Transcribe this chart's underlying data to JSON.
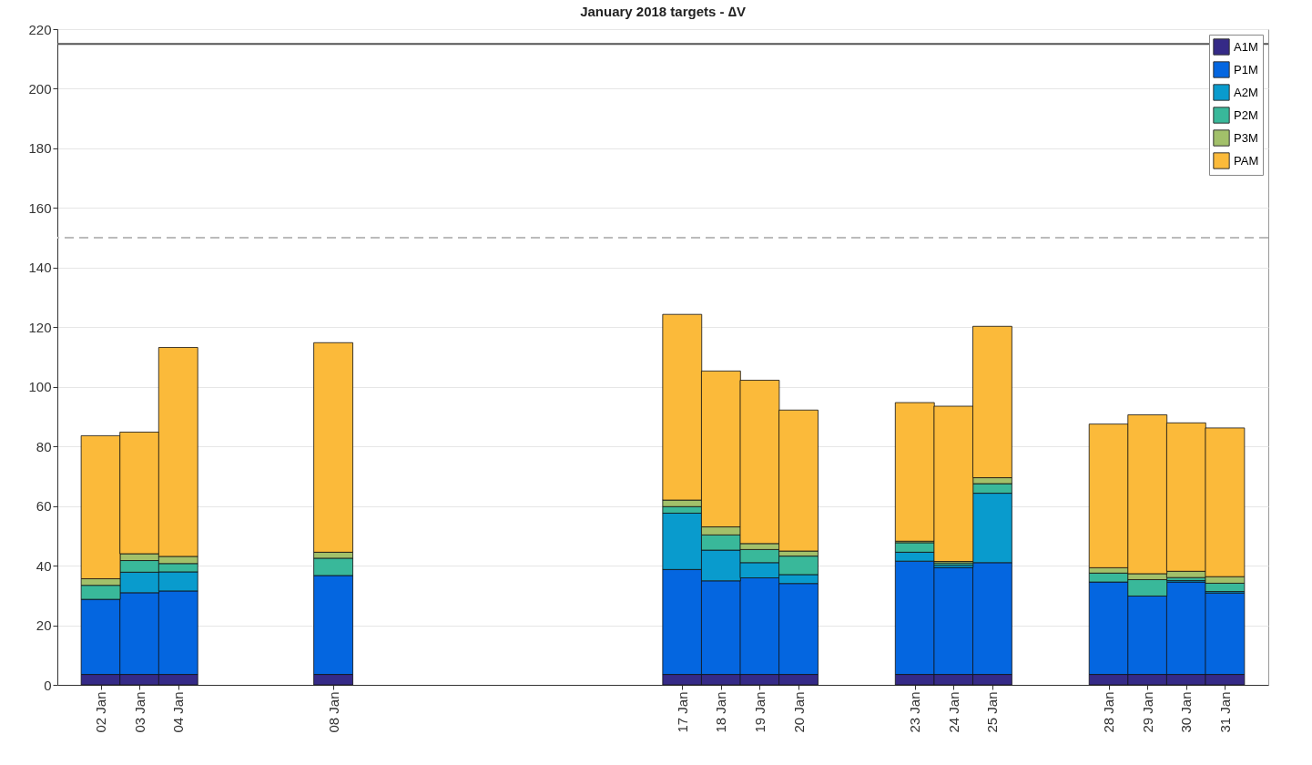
{
  "chart_data": {
    "type": "bar",
    "title": "January 2018 targets - ∆V",
    "stacked": true,
    "x": [
      "2018-01-02",
      "2018-01-03",
      "2018-01-04",
      "2018-01-08",
      "2018-01-17",
      "2018-01-18",
      "2018-01-19",
      "2018-01-20",
      "2018-01-23",
      "2018-01-24",
      "2018-01-25",
      "2018-01-28",
      "2018-01-29",
      "2018-01-30",
      "2018-01-31"
    ],
    "xlim": [
      "2018-01-01",
      "2018-02-01"
    ],
    "xticks": [
      {
        "value": "2018-01-02",
        "label": "02 Jan"
      },
      {
        "value": "2018-01-03",
        "label": "03 Jan"
      },
      {
        "value": "2018-01-04",
        "label": "04 Jan"
      },
      {
        "value": "2018-01-08",
        "label": "08 Jan"
      },
      {
        "value": "2018-01-17",
        "label": "17 Jan"
      },
      {
        "value": "2018-01-18",
        "label": "18 Jan"
      },
      {
        "value": "2018-01-19",
        "label": "19 Jan"
      },
      {
        "value": "2018-01-20",
        "label": "20 Jan"
      },
      {
        "value": "2018-01-23",
        "label": "23 Jan"
      },
      {
        "value": "2018-01-24",
        "label": "24 Jan"
      },
      {
        "value": "2018-01-25",
        "label": "25 Jan"
      },
      {
        "value": "2018-01-28",
        "label": "28 Jan"
      },
      {
        "value": "2018-01-29",
        "label": "29 Jan"
      },
      {
        "value": "2018-01-30",
        "label": "30 Jan"
      },
      {
        "value": "2018-01-31",
        "label": "31 Jan"
      }
    ],
    "ylim": [
      0,
      220
    ],
    "yticks": [
      0,
      20,
      40,
      60,
      80,
      100,
      120,
      140,
      160,
      180,
      200,
      220
    ],
    "grid": "y",
    "legend": "top right",
    "series": [
      {
        "name": "A1M",
        "color": "#352a87",
        "values": [
          3.5,
          3.5,
          3.5,
          3.5,
          3.5,
          3.5,
          3.5,
          3.5,
          3.5,
          3.5,
          3.5,
          3.5,
          3.5,
          3.5,
          3.5
        ]
      },
      {
        "name": "P1M",
        "color": "#0466e0",
        "values": [
          25.2,
          27.4,
          28.0,
          33.2,
          35.2,
          31.4,
          32.4,
          30.5,
          38.0,
          35.9,
          37.5,
          31.0,
          26.3,
          31.0,
          27.3
        ]
      },
      {
        "name": "A2M",
        "color": "#099bcd",
        "values": [
          null,
          6.9,
          6.4,
          null,
          18.9,
          10.3,
          5.1,
          3.0,
          3.0,
          0.8,
          23.3,
          null,
          null,
          0.5,
          0.5
        ]
      },
      {
        "name": "P2M",
        "color": "#39b89a",
        "values": [
          4.7,
          3.9,
          2.8,
          5.8,
          2.2,
          5.1,
          4.4,
          6.2,
          3.2,
          0.7,
          3.2,
          3.0,
          5.5,
          1.0,
          2.8
        ]
      },
      {
        "name": "P3M",
        "color": "#a2c06a",
        "values": [
          2.2,
          2.3,
          2.4,
          2.0,
          2.2,
          2.7,
          2.0,
          1.7,
          0.5,
          0.5,
          2.0,
          1.8,
          2.0,
          2.1,
          2.2
        ]
      },
      {
        "name": "PAM",
        "color": "#fbba3a",
        "values": [
          48.0,
          40.8,
          70.1,
          70.3,
          62.3,
          52.3,
          54.8,
          47.3,
          46.5,
          52.1,
          50.8,
          48.2,
          53.3,
          49.8,
          49.9
        ]
      }
    ],
    "ref_lines": [
      {
        "axis": "y",
        "value": 215,
        "color": "#555555",
        "line_style": "solid"
      },
      {
        "axis": "y",
        "value": 150,
        "color": "#bbbbbb",
        "line_style": "dashed"
      }
    ]
  }
}
